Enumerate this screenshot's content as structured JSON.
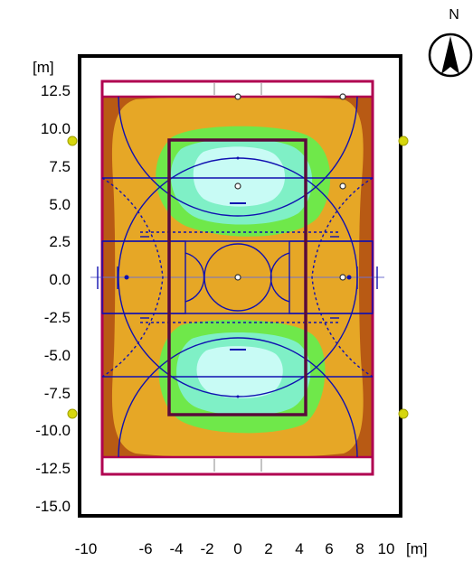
{
  "plot": {
    "y_unit": "[m]",
    "x_unit": "[m]",
    "y_ticks": [
      "12.5",
      "10.0",
      "7.5",
      "5.0",
      "2.5",
      "0.0",
      "-2.5",
      "-5.0",
      "-7.5",
      "-10.0",
      "-12.5",
      "-15.0"
    ],
    "x_ticks": [
      "-10",
      "-6",
      "-4",
      "-2",
      "0",
      "2",
      "4",
      "6",
      "8",
      "10"
    ],
    "compass": "N"
  },
  "colors": {
    "frame": "#000000",
    "court_lines": "#1010b0",
    "boundary": "#b00050",
    "zone_outer": "#b85a14",
    "zone_2": "#e6a726",
    "zone_3": "#6fe84a",
    "zone_4": "#7ff0c6",
    "zone_5": "#c8fbf5",
    "luminaire": "#d6d60e"
  }
}
